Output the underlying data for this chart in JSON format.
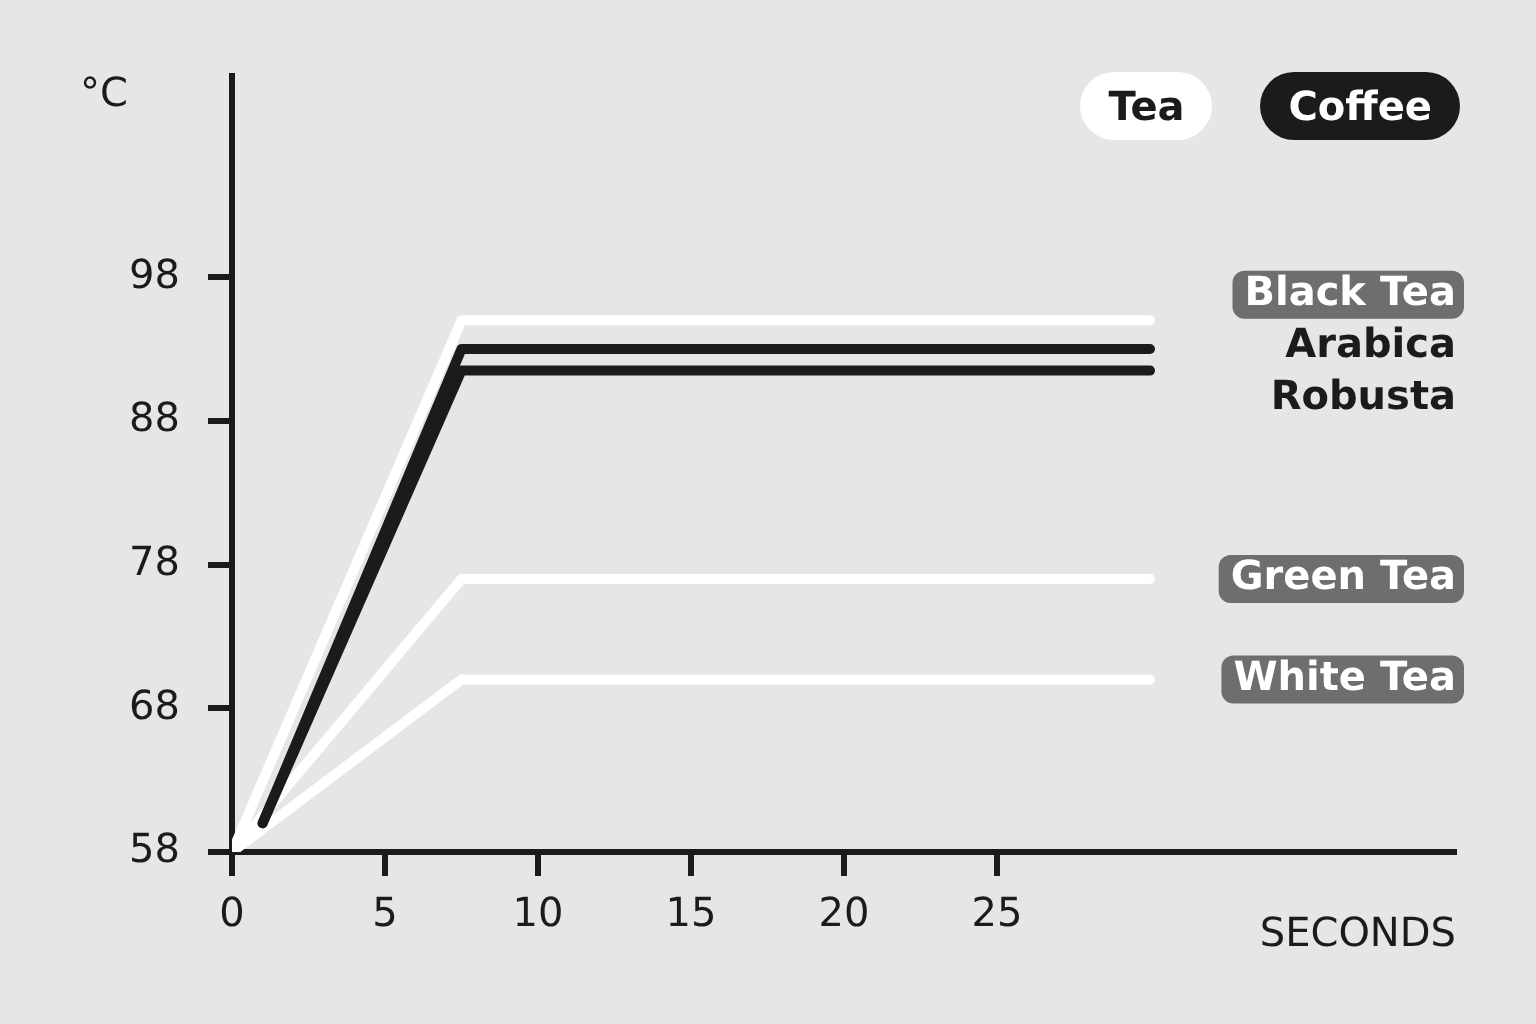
{
  "chart_data": {
    "type": "line",
    "ylabel": "°C",
    "xlabel": "SECONDS",
    "xlim": [
      0,
      40
    ],
    "xticks": [
      0,
      5,
      10,
      15,
      20,
      25
    ],
    "ylim": [
      58,
      112
    ],
    "yticks": [
      58,
      68,
      78,
      88,
      98
    ],
    "grid": false,
    "marker": "none",
    "line_style": "solid",
    "legend": false,
    "annotations": [
      "Tea",
      "Coffee"
    ],
    "series": [
      {
        "name": "Black Tea",
        "color": "#ffffff",
        "x": [
          0,
          7.5,
          30
        ],
        "values": [
          58,
          95,
          95
        ]
      },
      {
        "name": "Arabica",
        "color": "#1c1a1a",
        "x": [
          1,
          7.5,
          30
        ],
        "values": [
          60,
          93,
          93
        ]
      },
      {
        "name": "Robusta",
        "color": "#1c1a1a",
        "x": [
          1,
          7.5,
          30
        ],
        "values": [
          60,
          91.5,
          91.5
        ]
      },
      {
        "name": "Green Tea",
        "color": "#ffffff",
        "x": [
          0,
          7.5,
          30
        ],
        "values": [
          58,
          77,
          77
        ]
      },
      {
        "name": "White Tea",
        "color": "#ffffff",
        "x": [
          0,
          7.5,
          30
        ],
        "values": [
          58,
          70,
          70
        ]
      }
    ]
  }
}
